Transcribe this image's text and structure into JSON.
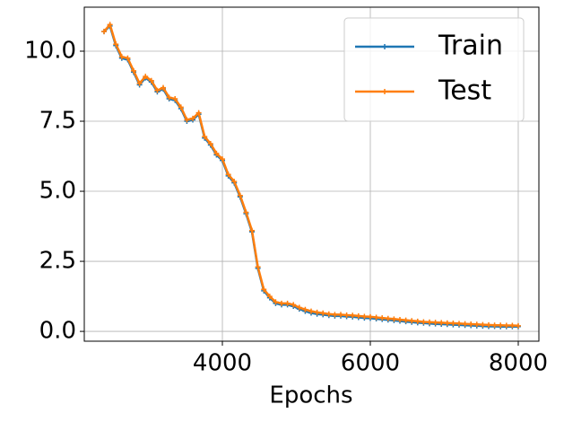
{
  "chart_data": {
    "type": "line",
    "xlabel": "Epochs",
    "x": [
      2400,
      2480,
      2560,
      2640,
      2720,
      2800,
      2880,
      2960,
      3040,
      3120,
      3200,
      3280,
      3360,
      3440,
      3520,
      3600,
      3680,
      3760,
      3840,
      3920,
      4000,
      4080,
      4160,
      4240,
      4320,
      4400,
      4480,
      4560,
      4640,
      4720,
      4800,
      4880,
      4960,
      5040,
      5120,
      5200,
      5280,
      5360,
      5440,
      5520,
      5600,
      5680,
      5760,
      5840,
      5920,
      6000,
      6080,
      6160,
      6240,
      6320,
      6400,
      6480,
      6560,
      6640,
      6720,
      6800,
      6880,
      6960,
      7040,
      7120,
      7200,
      7280,
      7360,
      7440,
      7520,
      7600,
      7680,
      7760,
      7840,
      7920,
      8000
    ],
    "series": [
      {
        "name": "Train",
        "color": "#1f77b4",
        "values": [
          10.7,
          10.9,
          10.2,
          9.75,
          9.7,
          9.25,
          8.8,
          9.05,
          8.9,
          8.55,
          8.65,
          8.3,
          8.25,
          7.95,
          7.5,
          7.55,
          7.75,
          6.9,
          6.65,
          6.3,
          6.1,
          5.55,
          5.3,
          4.8,
          4.2,
          3.55,
          2.25,
          1.45,
          1.2,
          1.0,
          0.95,
          0.95,
          0.9,
          0.8,
          0.72,
          0.66,
          0.62,
          0.6,
          0.57,
          0.55,
          0.55,
          0.53,
          0.52,
          0.5,
          0.48,
          0.47,
          0.45,
          0.43,
          0.41,
          0.39,
          0.37,
          0.35,
          0.33,
          0.31,
          0.3,
          0.28,
          0.27,
          0.26,
          0.25,
          0.24,
          0.23,
          0.22,
          0.21,
          0.2,
          0.19,
          0.18,
          0.18,
          0.17,
          0.17,
          0.17,
          0.17
        ]
      },
      {
        "name": "Test",
        "color": "#ff7f0e",
        "values": [
          10.7,
          10.95,
          10.25,
          9.8,
          9.75,
          9.3,
          8.85,
          9.1,
          8.95,
          8.6,
          8.7,
          8.35,
          8.3,
          8.0,
          7.55,
          7.6,
          7.8,
          6.95,
          6.7,
          6.35,
          6.15,
          5.6,
          5.35,
          4.85,
          4.25,
          3.6,
          2.3,
          1.5,
          1.25,
          1.05,
          1.0,
          1.0,
          0.95,
          0.85,
          0.78,
          0.72,
          0.68,
          0.65,
          0.62,
          0.6,
          0.6,
          0.58,
          0.57,
          0.55,
          0.53,
          0.52,
          0.5,
          0.48,
          0.46,
          0.44,
          0.42,
          0.4,
          0.38,
          0.36,
          0.34,
          0.33,
          0.32,
          0.31,
          0.3,
          0.29,
          0.28,
          0.27,
          0.26,
          0.25,
          0.24,
          0.23,
          0.22,
          0.22,
          0.21,
          0.21,
          0.2
        ]
      }
    ],
    "xlim": [
      2133,
      8279
    ],
    "ylim": [
      -0.35,
      11.57
    ],
    "xticks": [
      4000,
      6000,
      8000
    ],
    "yticks": [
      {
        "value": 0,
        "label": "0.0"
      },
      2.5,
      {
        "value": 5,
        "label": "5.0"
      },
      7.5,
      {
        "value": 10,
        "label": "10.0"
      }
    ],
    "grid": true,
    "legend": "upper right"
  }
}
